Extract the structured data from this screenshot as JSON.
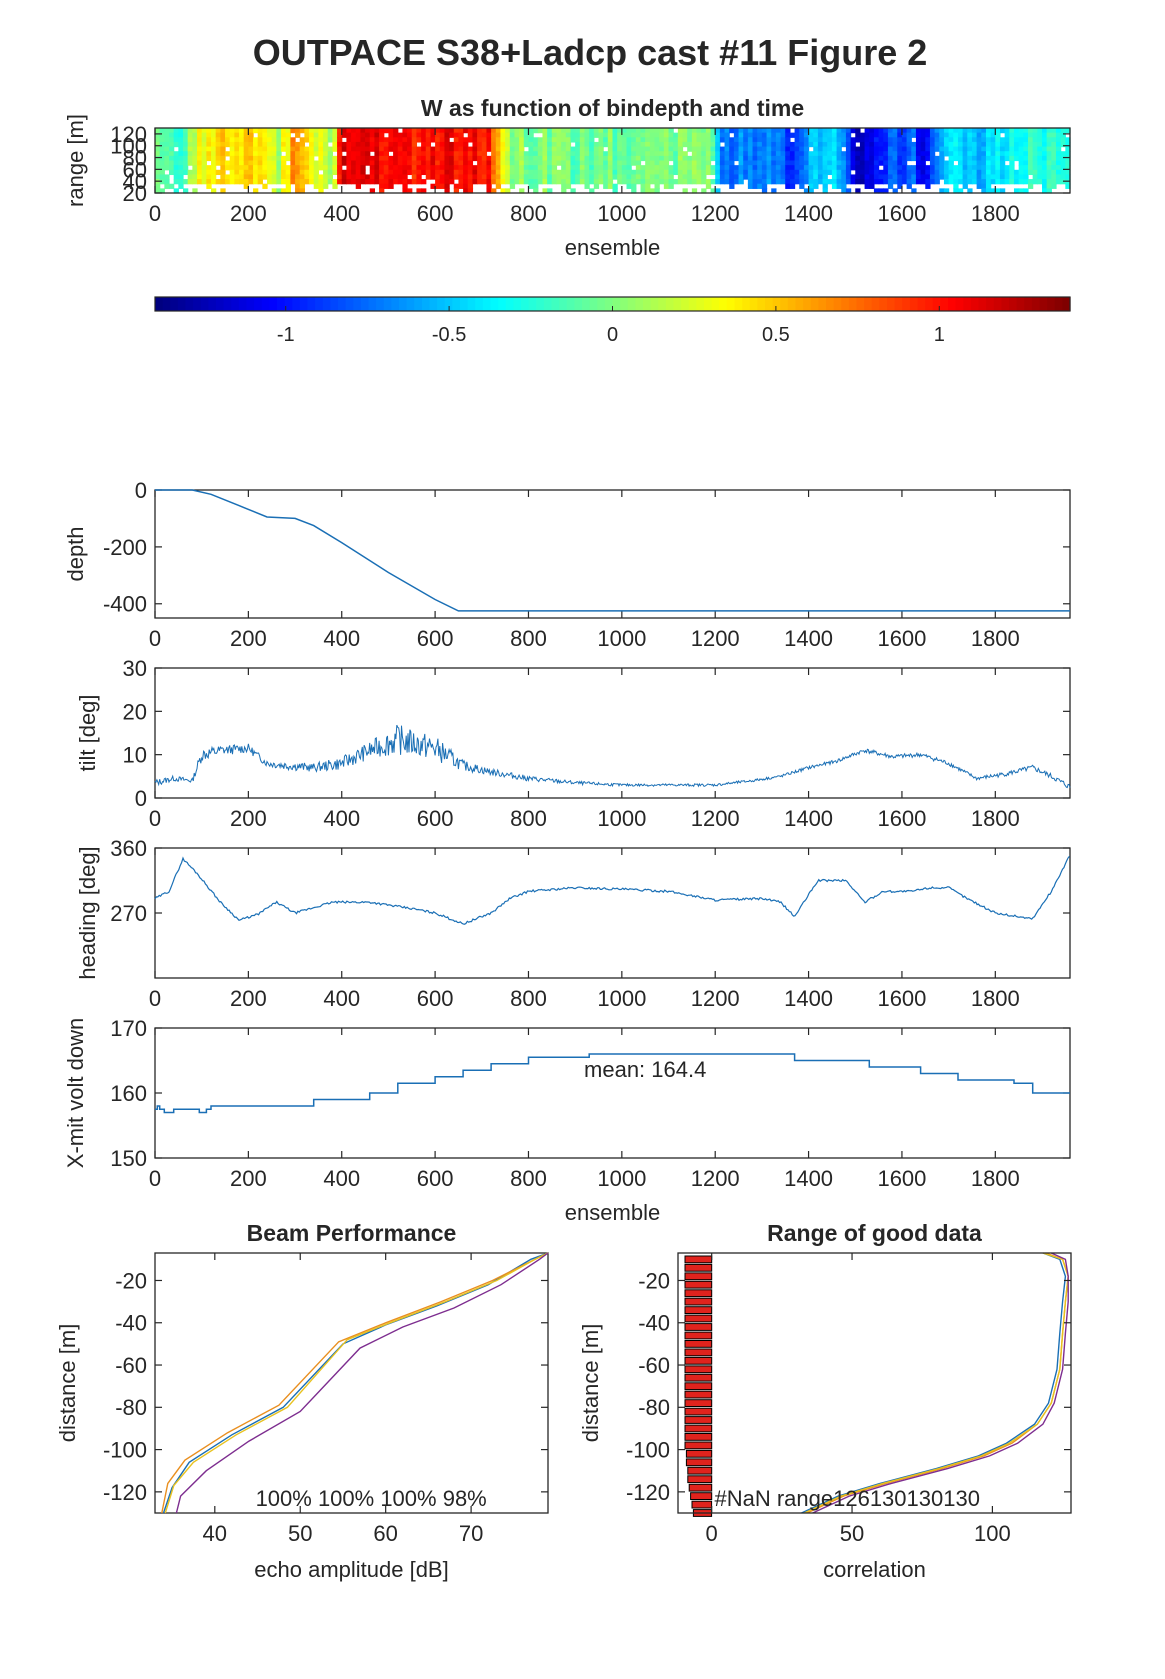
{
  "figure_title": "OUTPACE S38+Ladcp cast #11 Figure 2",
  "colors": {
    "line": "#1a6fb5",
    "axis": "#262626",
    "bar_fill": "#e0231d",
    "ensemble_blue": "#1a6fb5",
    "orange": "#e98f1f",
    "yellow": "#e8c21f",
    "purple": "#7d2d8f"
  },
  "chart_data": [
    {
      "id": "w_heatmap",
      "type": "heatmap",
      "title": "W as function of bindepth and time",
      "xlabel": "ensemble",
      "ylabel": "range [m]",
      "xlim": [
        0,
        1960
      ],
      "ylim": [
        20,
        130
      ],
      "xticks": [
        0,
        200,
        400,
        600,
        800,
        1000,
        1200,
        1400,
        1600,
        1800
      ],
      "yticks": [
        20,
        40,
        60,
        80,
        100,
        120
      ],
      "colormap": "jet",
      "clim": [
        -1.4,
        1.4
      ],
      "colorbar_ticks": [
        "-1",
        "-0.5",
        "0",
        "0.5",
        "1"
      ],
      "colorbar_tick_values": [
        -1,
        -0.5,
        0,
        0.5,
        1
      ],
      "w_profile": {
        "ensemble": [
          0,
          60,
          90,
          150,
          220,
          260,
          300,
          340,
          380,
          400,
          460,
          560,
          620,
          680,
          720,
          760,
          820,
          900,
          1000,
          1100,
          1200,
          1210,
          1250,
          1300,
          1340,
          1360,
          1400,
          1430,
          1480,
          1500,
          1560,
          1620,
          1650,
          1700,
          1760,
          1820,
          1880,
          1920,
          1960
        ],
        "w": [
          0.0,
          -0.15,
          0.3,
          0.5,
          0.45,
          0.1,
          0.65,
          0.35,
          0.1,
          1.15,
          1.1,
          1.0,
          1.1,
          1.05,
          0.95,
          0.05,
          0.0,
          -0.05,
          -0.05,
          0.0,
          -0.05,
          -0.8,
          -0.7,
          -0.75,
          -0.55,
          -1.1,
          -0.5,
          -0.45,
          -0.55,
          -1.35,
          -0.9,
          -0.75,
          -1.2,
          -0.3,
          -0.55,
          -0.35,
          -0.2,
          -0.3,
          -0.25
        ]
      }
    },
    {
      "id": "depth",
      "type": "line",
      "ylabel": "depth",
      "xlim": [
        0,
        1960
      ],
      "ylim": [
        -450,
        0
      ],
      "xticks": [
        0,
        200,
        400,
        600,
        800,
        1000,
        1200,
        1400,
        1600,
        1800
      ],
      "yticks": [
        0,
        -200,
        -400
      ],
      "x": [
        0,
        80,
        120,
        180,
        240,
        300,
        340,
        400,
        500,
        600,
        650,
        1960
      ],
      "y": [
        0,
        0,
        -15,
        -55,
        -95,
        -100,
        -125,
        -185,
        -290,
        -385,
        -425,
        -425
      ]
    },
    {
      "id": "tilt",
      "type": "line",
      "ylabel": "tilt [deg]",
      "xlim": [
        0,
        1960
      ],
      "ylim": [
        0,
        30
      ],
      "xticks": [
        0,
        200,
        400,
        600,
        800,
        1000,
        1200,
        1400,
        1600,
        1800
      ],
      "yticks": [
        0,
        10,
        20,
        30
      ],
      "x": [
        0,
        40,
        80,
        100,
        140,
        200,
        240,
        280,
        340,
        400,
        460,
        520,
        560,
        600,
        660,
        720,
        800,
        900,
        1000,
        1100,
        1200,
        1280,
        1340,
        1400,
        1460,
        1520,
        1580,
        1640,
        1700,
        1760,
        1820,
        1880,
        1920,
        1960
      ],
      "y": [
        3.5,
        4.5,
        4,
        10,
        11,
        11.5,
        8,
        7.5,
        7,
        8,
        11,
        13.5,
        12.5,
        11.5,
        7.5,
        6,
        4.5,
        3.5,
        3,
        3,
        3,
        4,
        5,
        7,
        8.5,
        11,
        9.5,
        10,
        8,
        4.5,
        5.5,
        7,
        5,
        2.5
      ],
      "noise": [
        0.8,
        0.6,
        0.6,
        1.5,
        1.2,
        1.0,
        0.8,
        1.0,
        1.0,
        1.5,
        2.0,
        3.5,
        3.0,
        3.0,
        1.2,
        0.8,
        0.6,
        0.4,
        0.3,
        0.3,
        0.3,
        0.3,
        0.3,
        0.4,
        0.4,
        0.5,
        0.5,
        0.5,
        0.5,
        0.4,
        0.5,
        0.6,
        0.6,
        0.7
      ]
    },
    {
      "id": "heading",
      "type": "line",
      "ylabel": "heading [deg]",
      "xlim": [
        0,
        1960
      ],
      "ylim": [
        180,
        360
      ],
      "xticks": [
        0,
        200,
        400,
        600,
        800,
        1000,
        1200,
        1400,
        1600,
        1800
      ],
      "yticks": [
        270,
        360
      ],
      "x": [
        0,
        30,
        60,
        90,
        140,
        180,
        220,
        260,
        300,
        380,
        460,
        560,
        600,
        660,
        720,
        760,
        800,
        900,
        1000,
        1100,
        1200,
        1300,
        1340,
        1370,
        1420,
        1480,
        1520,
        1560,
        1620,
        1660,
        1700,
        1740,
        1800,
        1850,
        1880,
        1920,
        1960
      ],
      "y": [
        290,
        300,
        345,
        325,
        285,
        260,
        268,
        285,
        270,
        285,
        285,
        275,
        270,
        255,
        270,
        290,
        300,
        305,
        303,
        300,
        288,
        290,
        285,
        265,
        315,
        315,
        285,
        300,
        300,
        305,
        305,
        290,
        270,
        265,
        262,
        300,
        350
      ]
    },
    {
      "id": "xmit_volt",
      "type": "line",
      "ylabel": "X-mit volt down",
      "xlabel": "ensemble",
      "xlim": [
        0,
        1960
      ],
      "ylim": [
        150,
        170
      ],
      "xticks": [
        0,
        200,
        400,
        600,
        800,
        1000,
        1200,
        1400,
        1600,
        1800
      ],
      "yticks": [
        150,
        160,
        170
      ],
      "annotation": "mean: 164.4",
      "annotation_x": 1050,
      "annotation_y": 162.5,
      "step_x": [
        0,
        5,
        10,
        20,
        40,
        80,
        95,
        110,
        120,
        340,
        460,
        520,
        600,
        660,
        720,
        800,
        930,
        1370,
        1530,
        1640,
        1720,
        1840,
        1880,
        1960
      ],
      "step_y": [
        157.5,
        158,
        157.5,
        157,
        157.5,
        157.5,
        157,
        157.5,
        158,
        159,
        160,
        161.5,
        162.5,
        163.5,
        164.5,
        165.5,
        166,
        165,
        164,
        163,
        162,
        161.5,
        160,
        160
      ]
    },
    {
      "id": "beam_performance",
      "type": "line",
      "title": "Beam Performance",
      "xlabel": "echo amplitude [dB]",
      "ylabel": "distance [m]",
      "xlim": [
        33,
        79
      ],
      "ylim": [
        -130,
        -7
      ],
      "xticks": [
        40,
        50,
        60,
        70
      ],
      "yticks": [
        -20,
        -40,
        -60,
        -80,
        -100,
        -120
      ],
      "beam_percent_text": "100%  100%  100%   98%",
      "series": [
        {
          "color_key": "ensemble_blue",
          "x": [
            34,
            35,
            37,
            42,
            48,
            55,
            60,
            66,
            72,
            77,
            79
          ],
          "y": [
            -130,
            -118,
            -106,
            -93,
            -80,
            -50,
            -41,
            -32,
            -22,
            -10,
            -7
          ]
        },
        {
          "color_key": "orange",
          "x": [
            33.8,
            34.5,
            36.5,
            41.5,
            47.5,
            54.5,
            60,
            66.5,
            72.5,
            77.5,
            79
          ],
          "y": [
            -130,
            -116,
            -105,
            -92,
            -79,
            -49,
            -40,
            -30,
            -20,
            -10,
            -7
          ]
        },
        {
          "color_key": "yellow",
          "x": [
            34.2,
            35.2,
            37.5,
            42.5,
            48.5,
            55.5,
            60.5,
            67,
            73,
            77.5,
            79
          ],
          "y": [
            -130,
            -117,
            -106,
            -93,
            -80,
            -48,
            -40,
            -30,
            -20,
            -10,
            -7
          ]
        },
        {
          "color_key": "purple",
          "x": [
            35.5,
            36,
            39,
            44,
            50,
            57,
            62,
            68,
            73.5,
            78,
            79
          ],
          "y": [
            -130,
            -122,
            -110,
            -96,
            -82,
            -52,
            -42,
            -33,
            -22,
            -10,
            -7
          ]
        }
      ]
    },
    {
      "id": "range_good_data",
      "type": "bar",
      "title": "Range of good data",
      "xlabel": "correlation",
      "ylabel": "distance [m]",
      "xlim": [
        -12,
        128
      ],
      "ylim": [
        -130,
        -7
      ],
      "xticks": [
        0,
        50,
        100
      ],
      "yticks": [
        -20,
        -40,
        -60,
        -80,
        -100,
        -120
      ],
      "nan_text": "#NaN range126130130130",
      "bars": {
        "y": [
          -10,
          -14,
          -18,
          -22,
          -26,
          -30,
          -34,
          -38,
          -42,
          -46,
          -50,
          -54,
          -58,
          -62,
          -66,
          -70,
          -74,
          -78,
          -82,
          -86,
          -90,
          -94,
          -98,
          -102,
          -106,
          -110,
          -114,
          -118,
          -122,
          -126,
          -130
        ],
        "left": [
          -9.5,
          -9.5,
          -9.5,
          -9.5,
          -9.5,
          -9.5,
          -9.5,
          -9.5,
          -9.5,
          -9.5,
          -9.5,
          -9.5,
          -9.5,
          -9.5,
          -9.5,
          -9.5,
          -9.5,
          -9.5,
          -9.5,
          -9.5,
          -9.5,
          -9.5,
          -9.5,
          -9,
          -9,
          -8.5,
          -8.5,
          -8,
          -7.5,
          -7,
          -6.5
        ]
      },
      "series": [
        {
          "color_key": "ensemble_blue",
          "x": [
            32,
            45,
            60,
            80,
            95,
            105,
            115,
            120,
            123,
            124,
            125,
            126,
            124,
            118
          ],
          "y": [
            -130,
            -122,
            -116,
            -109,
            -103,
            -97,
            -88,
            -78,
            -62,
            -45,
            -30,
            -18,
            -10,
            -7
          ]
        },
        {
          "color_key": "orange",
          "x": [
            34,
            47,
            62,
            82,
            97,
            107,
            116,
            121,
            124,
            125,
            126,
            127,
            125,
            119
          ],
          "y": [
            -130,
            -122,
            -116,
            -109,
            -103,
            -97,
            -88,
            -78,
            -62,
            -45,
            -30,
            -18,
            -10,
            -7
          ]
        },
        {
          "color_key": "yellow",
          "x": [
            33,
            46,
            61,
            81,
            96,
            106,
            116,
            121,
            124,
            125,
            126,
            127,
            125,
            118
          ],
          "y": [
            -130,
            -122,
            -116,
            -109,
            -103,
            -97,
            -88,
            -78,
            -62,
            -45,
            -30,
            -18,
            -10,
            -7
          ]
        },
        {
          "color_key": "purple",
          "x": [
            36,
            49,
            64,
            84,
            99,
            109,
            118,
            122,
            125,
            126,
            127,
            127,
            126,
            121
          ],
          "y": [
            -130,
            -122,
            -116,
            -109,
            -103,
            -97,
            -88,
            -78,
            -62,
            -45,
            -30,
            -18,
            -10,
            -7
          ]
        }
      ]
    }
  ]
}
